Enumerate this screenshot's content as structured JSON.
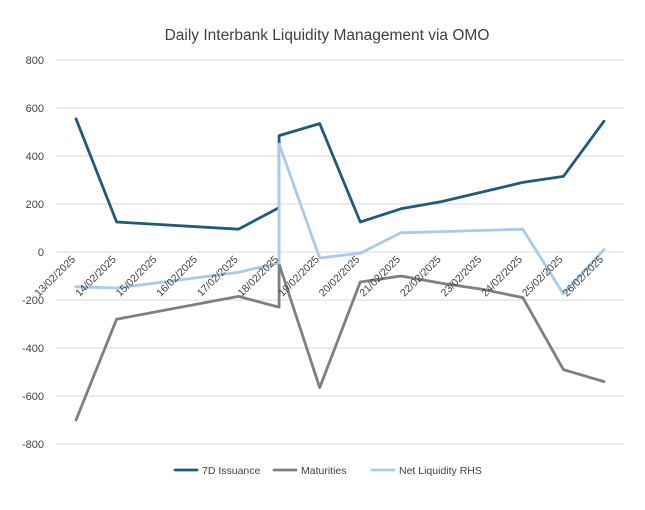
{
  "chart_data": {
    "type": "line",
    "title": "Daily Interbank Liquidity Management via OMO",
    "xlabel": "",
    "ylabel": "",
    "ylim": [
      -800,
      800
    ],
    "yticks": [
      800,
      600,
      400,
      200,
      0,
      -200,
      -400,
      -600,
      -800
    ],
    "categories": [
      "13/02/2025",
      "14/02/2025",
      "15/02/2025",
      "16/02/2025",
      "17/02/2025",
      "18/02/2025",
      "19/02/2025",
      "20/02/2025",
      "21/02/2025",
      "22/02/2025",
      "23/02/2025",
      "24/02/2025",
      "25/02/2025",
      "26/02/2025"
    ],
    "category_labels": [
      "13/02/2025",
      "14/02/2025",
      "15/02/2025",
      "16/02/2025",
      "17/02/2025",
      "18/02/2025",
      "19/02/2025",
      "20/02/2025",
      "21/02/2025",
      "22/02/2025",
      "23/02/2025",
      "24/02/2025",
      "25/02/2025",
      "26/02/2025"
    ],
    "grid": true,
    "legend_position": "bottom",
    "series": [
      {
        "name": "7D Issuance",
        "color": "#1f5c7a",
        "points": [
          [
            0,
            555
          ],
          [
            1,
            125
          ],
          [
            4,
            95
          ],
          [
            5,
            185
          ],
          [
            5,
            485
          ],
          [
            6,
            535
          ],
          [
            7,
            125
          ],
          [
            8,
            180
          ],
          [
            9,
            210
          ],
          [
            10,
            250
          ],
          [
            11,
            290
          ],
          [
            12,
            315
          ],
          [
            13,
            545
          ]
        ]
      },
      {
        "name": "Maturities",
        "color": "#7f7f7f",
        "points": [
          [
            0,
            -700
          ],
          [
            1,
            -280
          ],
          [
            4,
            -185
          ],
          [
            5,
            -230
          ],
          [
            5,
            -50
          ],
          [
            6,
            -565
          ],
          [
            7,
            -125
          ],
          [
            8,
            -100
          ],
          [
            9,
            -130
          ],
          [
            10,
            -155
          ],
          [
            11,
            -190
          ],
          [
            12,
            -490
          ],
          [
            13,
            -540
          ]
        ]
      },
      {
        "name": "Net Liquidity RHS",
        "color": "#a9cbe8",
        "points": [
          [
            0,
            -145
          ],
          [
            1,
            -150
          ],
          [
            4,
            -85
          ],
          [
            5,
            -45
          ],
          [
            5,
            450
          ],
          [
            6,
            -25
          ],
          [
            7,
            -5
          ],
          [
            8,
            80
          ],
          [
            9,
            85
          ],
          [
            10,
            90
          ],
          [
            11,
            95
          ],
          [
            12,
            -175
          ],
          [
            13,
            10
          ]
        ]
      }
    ]
  }
}
